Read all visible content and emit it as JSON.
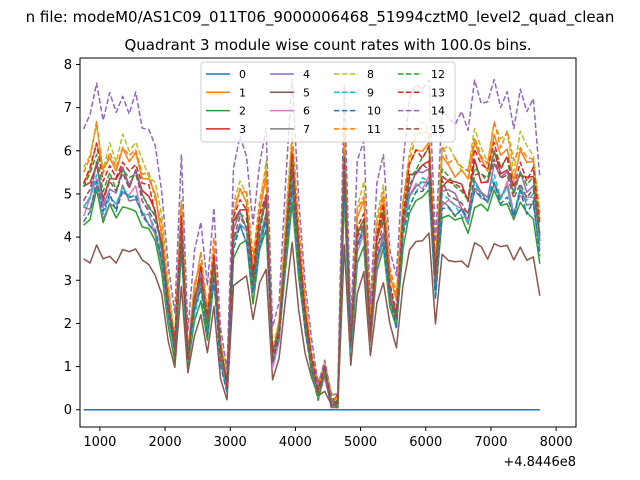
{
  "figure": {
    "suptitle": "n file: modeM0/AS1C09_011T06_9000006468_51994cztM0_level2_quad_clean"
  },
  "chart_data": {
    "type": "line",
    "title": "Quadrant 3 module wise count rates with 100.0s bins.",
    "xlabel": "",
    "ylabel": "",
    "x_offset_label": "+4.8446e8",
    "xlim": [
      695,
      8305
    ],
    "ylim": [
      -0.4,
      8.15
    ],
    "x_ticks": [
      1000,
      2000,
      3000,
      4000,
      5000,
      6000,
      7000,
      8000
    ],
    "y_ticks": [
      0,
      1,
      2,
      3,
      4,
      5,
      6,
      7,
      8
    ],
    "x": [
      750,
      850,
      950,
      1050,
      1150,
      1250,
      1350,
      1450,
      1550,
      1650,
      1750,
      1850,
      1950,
      2050,
      2150,
      2250,
      2350,
      2450,
      2550,
      2650,
      2750,
      2850,
      2950,
      3050,
      3150,
      3250,
      3350,
      3450,
      3550,
      3650,
      3750,
      3850,
      3950,
      4050,
      4150,
      4250,
      4350,
      4450,
      4550,
      4650,
      4750,
      4850,
      4950,
      5050,
      5150,
      5250,
      5350,
      5450,
      5550,
      5650,
      5750,
      5850,
      5950,
      6050,
      6150,
      6250,
      6350,
      6450,
      6550,
      6650,
      6750,
      6850,
      6950,
      7050,
      7150,
      7250,
      7350,
      7450,
      7550,
      7650,
      7750
    ],
    "base_profile": [
      5.0,
      5.2,
      5.8,
      5.0,
      5.4,
      5.1,
      5.6,
      5.3,
      5.5,
      5.0,
      4.8,
      4.5,
      3.8,
      2.4,
      1.4,
      4.3,
      1.2,
      2.5,
      3.1,
      2.0,
      3.4,
      1.3,
      0.6,
      4.2,
      4.6,
      4.4,
      3.0,
      4.2,
      4.9,
      1.2,
      1.8,
      3.8,
      5.7,
      3.6,
      2.1,
      1.0,
      0.4,
      0.9,
      0.15,
      0.2,
      5.7,
      1.5,
      4.1,
      4.5,
      1.8,
      3.8,
      4.4,
      2.8,
      2.2,
      4.4,
      5.3,
      5.6,
      5.7,
      5.8,
      3.0,
      5.3,
      5.2,
      5.1,
      5.0,
      4.8,
      5.6,
      5.4,
      5.2,
      5.8,
      5.4,
      5.6,
      5.0,
      5.5,
      5.2,
      5.3,
      4.0
    ],
    "series": [
      {
        "name": "0",
        "color": "#1f77b4",
        "dash": "solid",
        "scale": 0.0,
        "offset": 0.0,
        "jitter": 0.0
      },
      {
        "name": "1",
        "color": "#ff7f0e",
        "dash": "solid",
        "scale": 1.06,
        "offset": 0.1,
        "jitter": 0.2
      },
      {
        "name": "2",
        "color": "#2ca02c",
        "dash": "solid",
        "scale": 0.86,
        "offset": 0.0,
        "jitter": 0.15
      },
      {
        "name": "3",
        "color": "#d62728",
        "dash": "solid",
        "scale": 1.0,
        "offset": 0.05,
        "jitter": 0.2
      },
      {
        "name": "4",
        "color": "#9467bd",
        "dash": "solid",
        "scale": 0.97,
        "offset": 0.0,
        "jitter": 0.2
      },
      {
        "name": "5",
        "color": "#8c564b",
        "dash": "solid",
        "scale": 0.7,
        "offset": -0.1,
        "jitter": 0.15
      },
      {
        "name": "6",
        "color": "#e377c2",
        "dash": "solid",
        "scale": 0.92,
        "offset": 0.0,
        "jitter": 0.15
      },
      {
        "name": "7",
        "color": "#7f7f7f",
        "dash": "solid",
        "scale": 0.9,
        "offset": 0.05,
        "jitter": 0.15
      },
      {
        "name": "8",
        "color": "#bcbd22",
        "dash": "dashed",
        "scale": 1.12,
        "offset": 0.1,
        "jitter": 0.2
      },
      {
        "name": "9",
        "color": "#17becf",
        "dash": "dashed",
        "scale": 0.93,
        "offset": -0.05,
        "jitter": 0.15
      },
      {
        "name": "10",
        "color": "#1f77b4",
        "dash": "dashed",
        "scale": 0.9,
        "offset": 0.0,
        "jitter": 0.15
      },
      {
        "name": "11",
        "color": "#ff7f0e",
        "dash": "dashed",
        "scale": 1.1,
        "offset": 0.1,
        "jitter": 0.2
      },
      {
        "name": "12",
        "color": "#2ca02c",
        "dash": "dashed",
        "scale": 1.02,
        "offset": 0.0,
        "jitter": 0.2
      },
      {
        "name": "13",
        "color": "#d62728",
        "dash": "dashed",
        "scale": 1.04,
        "offset": 0.05,
        "jitter": 0.2
      },
      {
        "name": "14",
        "color": "#9467bd",
        "dash": "dashed",
        "scale": 1.3,
        "offset": 0.2,
        "jitter": 0.25
      },
      {
        "name": "15",
        "color": "#8c564b",
        "dash": "dashed",
        "scale": 0.98,
        "offset": 0.0,
        "jitter": 0.2
      }
    ],
    "legend": {
      "placement": "top-center",
      "columns": 4
    },
    "grid": false
  }
}
